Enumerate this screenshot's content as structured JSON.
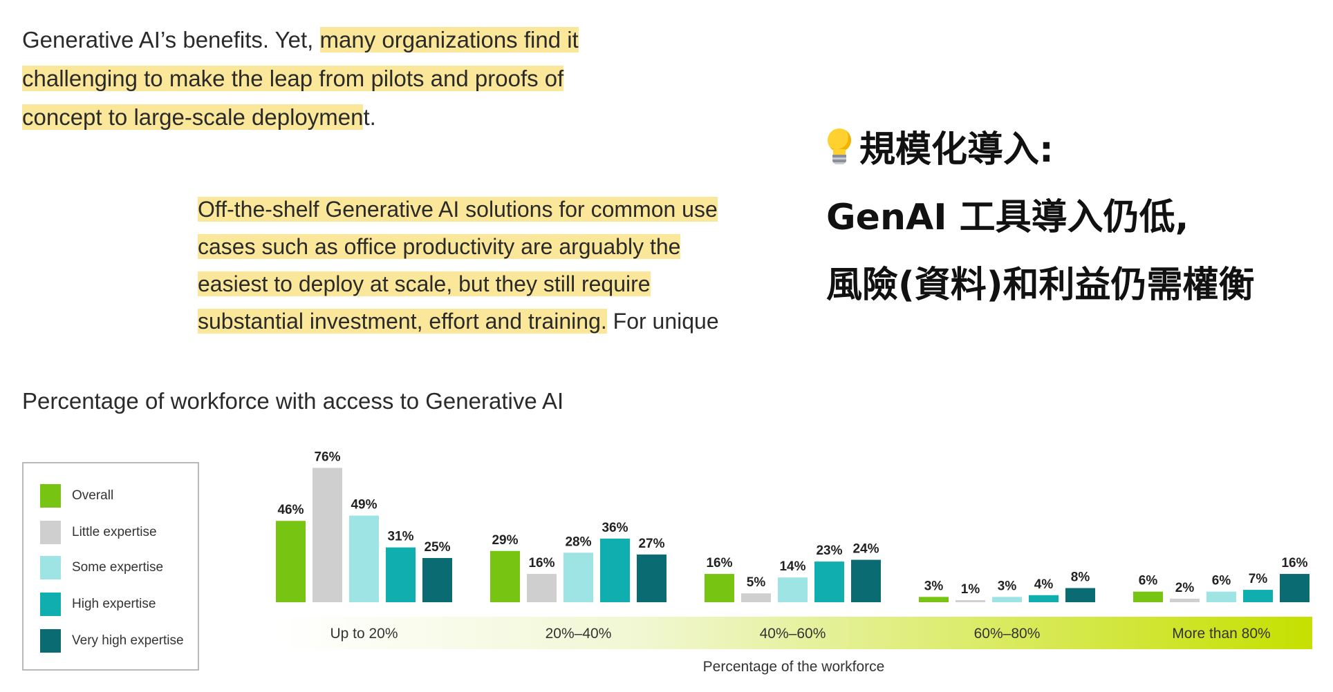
{
  "text": {
    "para1_plain_start": "Generative AI’s benefits. Yet, ",
    "para1_highlight": "many organizations find it challenging to make the leap from pilots and proofs of concept to large-scale deploymen",
    "para1_plain_end": "t.",
    "para2_highlight": "Off-the-shelf Generative AI solutions for common use cases such as office productivity are arguably the easiest to deploy at scale, but they still require substantial investment, effort and training.",
    "para2_plain_end": " For unique and/or more"
  },
  "callout": {
    "icon": "lightbulb-icon",
    "line1": "規模化導入:",
    "line2": "GenAI 工具導入仍低,",
    "line3": "風險(資料)和利益仍需權衡"
  },
  "chart_data": {
    "type": "bar",
    "title": "Percentage of workforce with access to Generative AI",
    "xlabel": "Percentage of the workforce",
    "ylabel": "",
    "ylim": [
      0,
      80
    ],
    "categories": [
      "Up to 20%",
      "20%–40%",
      "40%–60%",
      "60%–80%",
      "More than 80%"
    ],
    "series": [
      {
        "name": "Overall",
        "color": "#78c412",
        "values": [
          46,
          29,
          16,
          3,
          6
        ]
      },
      {
        "name": "Little expertise",
        "color": "#cfcfcf",
        "values": [
          76,
          16,
          5,
          1,
          2
        ]
      },
      {
        "name": "Some expertise",
        "color": "#9fe4e4",
        "values": [
          49,
          28,
          14,
          3,
          6
        ]
      },
      {
        "name": "High expertise",
        "color": "#10aeae",
        "values": [
          31,
          36,
          23,
          4,
          7
        ]
      },
      {
        "name": "Very high expertise",
        "color": "#0b6b73",
        "values": [
          25,
          27,
          24,
          8,
          16
        ]
      }
    ],
    "legend_position": "left",
    "grid": false
  }
}
